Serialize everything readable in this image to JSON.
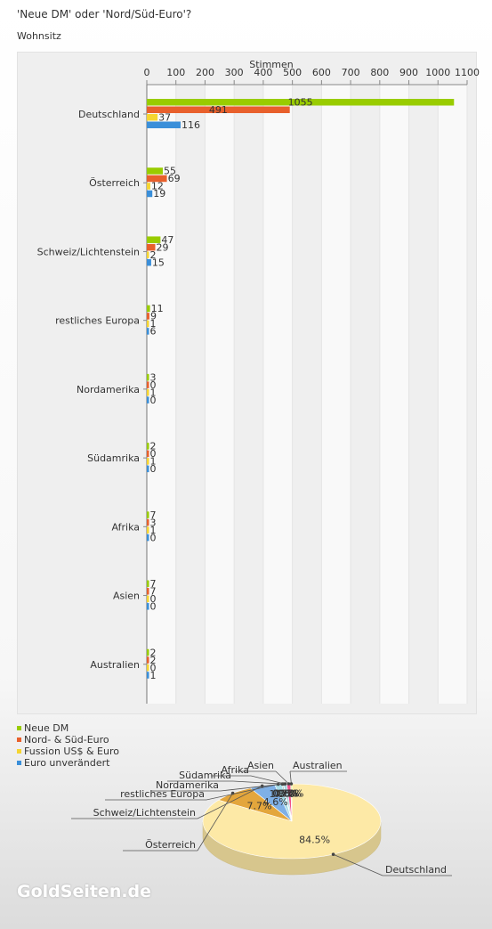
{
  "header": {
    "title": "'Neue DM' oder 'Nord/Süd-Euro'?",
    "subtitle": "Wohnsitz"
  },
  "brand": "GoldSeiten.de",
  "chart_data": [
    {
      "type": "bar",
      "orientation": "horizontal",
      "xlabel": "Stimmen",
      "xlim": [
        0,
        1100
      ],
      "xticks": [
        0,
        100,
        200,
        300,
        400,
        500,
        600,
        700,
        800,
        900,
        1000,
        1100
      ],
      "categories": [
        "Deutschland",
        "Österreich",
        "Schweiz/Lichtenstein",
        "restliches Europa",
        "Nordamerika",
        "Südamrika",
        "Afrika",
        "Asien",
        "Australien"
      ],
      "series": [
        {
          "name": "Neue DM",
          "color": "#99cc00",
          "values": [
            1055,
            55,
            47,
            11,
            3,
            2,
            7,
            7,
            2
          ]
        },
        {
          "name": "Nord- & Süd-Euro",
          "color": "#e8602c",
          "values": [
            491,
            69,
            29,
            9,
            0,
            0,
            3,
            7,
            2
          ]
        },
        {
          "name": "Fussion US$ & Euro",
          "color": "#f5d531",
          "values": [
            37,
            12,
            2,
            1,
            1,
            1,
            1,
            0,
            0
          ]
        },
        {
          "name": "Euro unverändert",
          "color": "#3a8fd9",
          "values": [
            116,
            19,
            15,
            6,
            0,
            0,
            0,
            0,
            1
          ]
        }
      ],
      "legend": "bottom-left",
      "grid": "alternating vertical bands"
    },
    {
      "type": "pie",
      "slices": [
        {
          "label": "Deutschland",
          "percent": 84.5,
          "value_label": "84.5%",
          "color": "#fde9a6"
        },
        {
          "label": "Österreich",
          "percent": 7.7,
          "value_label": "7.7%",
          "color": "#e3a63c"
        },
        {
          "label": "Schweiz/Lichtenstein",
          "percent": 4.6,
          "value_label": "4.6%",
          "color": "#7fb0e6"
        },
        {
          "label": "restliches Europa",
          "percent": 1.3,
          "value_label": "1.3%",
          "color": "#a8dde8"
        },
        {
          "label": "Nordamerika",
          "percent": 0.2,
          "value_label": "0.2%",
          "color": "#6e9a9c"
        },
        {
          "label": "Südamrika",
          "percent": 0.1,
          "value_label": "0.1%",
          "color": "#e8a890"
        },
        {
          "label": "Afrika",
          "percent": 0.6,
          "value_label": "0.6%",
          "color": "#a6d2dc"
        },
        {
          "label": "Asien",
          "percent": 0.7,
          "value_label": "0.7%",
          "color": "#f0508a"
        },
        {
          "label": "Australien",
          "percent": 0.2,
          "value_label": "0.2%",
          "color": "#c6ec8a"
        }
      ]
    }
  ]
}
